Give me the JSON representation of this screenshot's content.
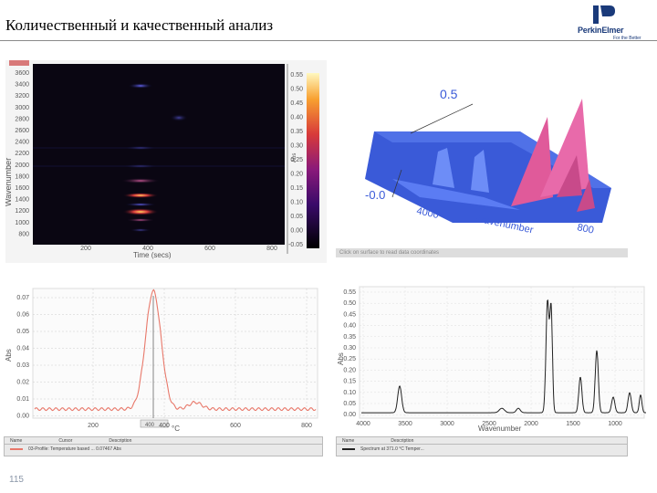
{
  "slide": {
    "title": "Количественный и качественный анализ",
    "page_number": "115"
  },
  "logo": {
    "brand": "PerkinElmer",
    "tagline": "For the Better"
  },
  "heatmap": {
    "y_label": "Wavenumber",
    "x_label": "Time (secs)",
    "x_ticks": [
      "200",
      "400",
      "600",
      "800"
    ],
    "y_ticks": [
      "3600",
      "3400",
      "3200",
      "3000",
      "2800",
      "2600",
      "2400",
      "2200",
      "2000",
      "1800",
      "1600",
      "1400",
      "1200",
      "1000",
      "800"
    ],
    "colorbar_label": "Abs",
    "colorbar_ticks": [
      "0.55",
      "0.50",
      "0.45",
      "0.40",
      "0.35",
      "0.30",
      "0.25",
      "0.20",
      "0.15",
      "0.10",
      "0.05",
      "0.00",
      "-0.05"
    ]
  },
  "surface3d": {
    "z_top": "0.5",
    "z_bottom": "-0.0",
    "axis_left": "4000",
    "axis_label": "Wavenumber",
    "axis_right": "800",
    "status": "Click on surface to read data coordinates"
  },
  "profile_chart": {
    "ylabel": "Abs",
    "xlabel": "°C",
    "y_ticks": [
      "0.07",
      "0.06",
      "0.05",
      "0.04",
      "0.03",
      "0.02",
      "0.01",
      "0.00"
    ],
    "x_ticks": [
      "200",
      "400",
      "600",
      "800"
    ],
    "cursor_value": "400",
    "legend_headers": [
      "Name",
      "Cursor",
      "Description"
    ],
    "legend_row": "03-Profile: Temperature based ...   0.07467 Abs",
    "line_color": "#e8786a"
  },
  "spectrum_chart": {
    "ylabel": "Abs",
    "xlabel": "Wavenumber",
    "y_ticks": [
      "0.55",
      "0.50",
      "0.45",
      "0.40",
      "0.35",
      "0.30",
      "0.25",
      "0.20",
      "0.15",
      "0.10",
      "0.05",
      "0.00"
    ],
    "x_ticks": [
      "4000",
      "3500",
      "3000",
      "2500",
      "2000",
      "1500",
      "1000"
    ],
    "legend_headers": [
      "Name",
      "Description"
    ],
    "legend_row": "Spectrum at 371.0 °C Temper...",
    "line_color": "#222222"
  }
}
